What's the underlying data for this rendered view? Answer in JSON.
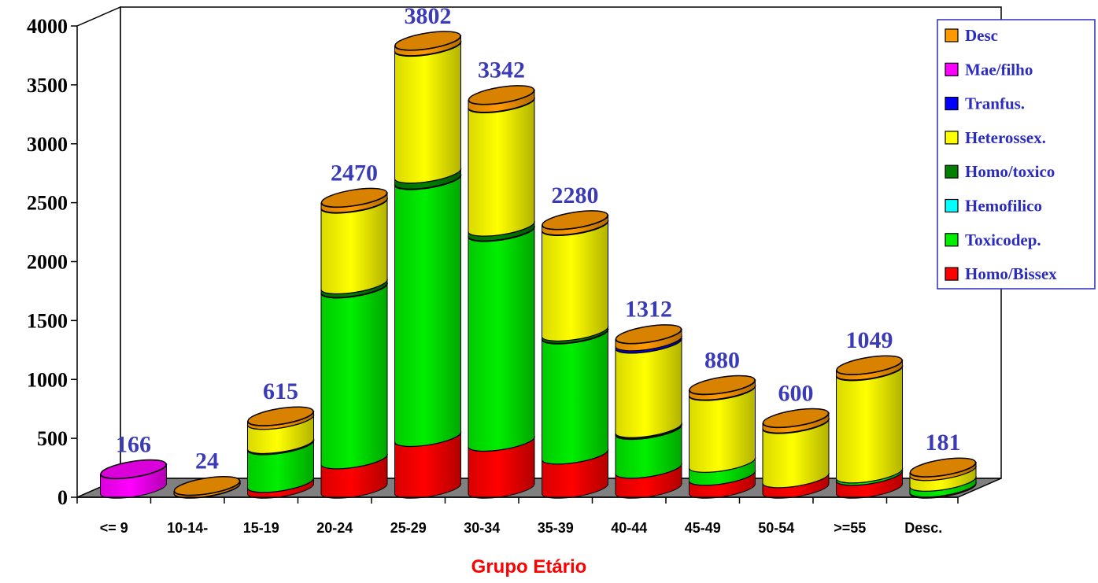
{
  "chart_data": {
    "type": "bar",
    "stacked": true,
    "three_d": true,
    "xlabel": "Grupo Etário",
    "ylabel": "",
    "ylim": [
      0,
      4000
    ],
    "yticks": [
      0,
      500,
      1000,
      1500,
      2000,
      2500,
      3000,
      3500,
      4000
    ],
    "grid": false,
    "legend_position": "top-right",
    "categories": [
      "<= 9",
      "10-14-",
      "15-19",
      "20-24",
      "25-29",
      "30-34",
      "35-39",
      "40-44",
      "45-49",
      "50-54",
      ">=55",
      "Desc."
    ],
    "totals": [
      166,
      24,
      615,
      2470,
      3802,
      3342,
      2280,
      1312,
      880,
      600,
      1049,
      181
    ],
    "series": [
      {
        "name": "Homo/Bissex",
        "color": "#ff0000",
        "values": [
          0,
          0,
          50,
          250,
          440,
          400,
          290,
          170,
          110,
          90,
          110,
          10
        ]
      },
      {
        "name": "Toxicodep.",
        "color": "#00ee00",
        "values": [
          0,
          0,
          320,
          1450,
          2180,
          1780,
          1020,
          330,
          110,
          0,
          20,
          50
        ]
      },
      {
        "name": "Hemofilico",
        "color": "#00ffff",
        "values": [
          0,
          0,
          0,
          5,
          5,
          5,
          5,
          5,
          0,
          0,
          0,
          0
        ]
      },
      {
        "name": "Homo/toxico",
        "color": "#008000",
        "values": [
          0,
          0,
          10,
          30,
          50,
          40,
          20,
          10,
          0,
          0,
          0,
          0
        ]
      },
      {
        "name": "Heterossex.",
        "color": "#ffff00",
        "values": [
          0,
          0,
          205,
          685,
          1077,
          1047,
          895,
          717,
          610,
          460,
          869,
          91
        ]
      },
      {
        "name": "Tranfus.",
        "color": "#0000ff",
        "values": [
          0,
          0,
          0,
          5,
          5,
          5,
          5,
          20,
          5,
          5,
          5,
          0
        ]
      },
      {
        "name": "Mae/filho",
        "color": "#ff00ff",
        "values": [
          166,
          5,
          0,
          0,
          0,
          0,
          0,
          0,
          0,
          0,
          0,
          0
        ]
      },
      {
        "name": "Desc",
        "color": "#ff9900",
        "values": [
          0,
          19,
          30,
          45,
          45,
          65,
          45,
          60,
          45,
          45,
          45,
          30
        ]
      }
    ],
    "legend_order": [
      "Desc",
      "Mae/filho",
      "Tranfus.",
      "Heterossex.",
      "Homo/toxico",
      "Hemofilico",
      "Toxicodep.",
      "Homo/Bissex"
    ]
  }
}
